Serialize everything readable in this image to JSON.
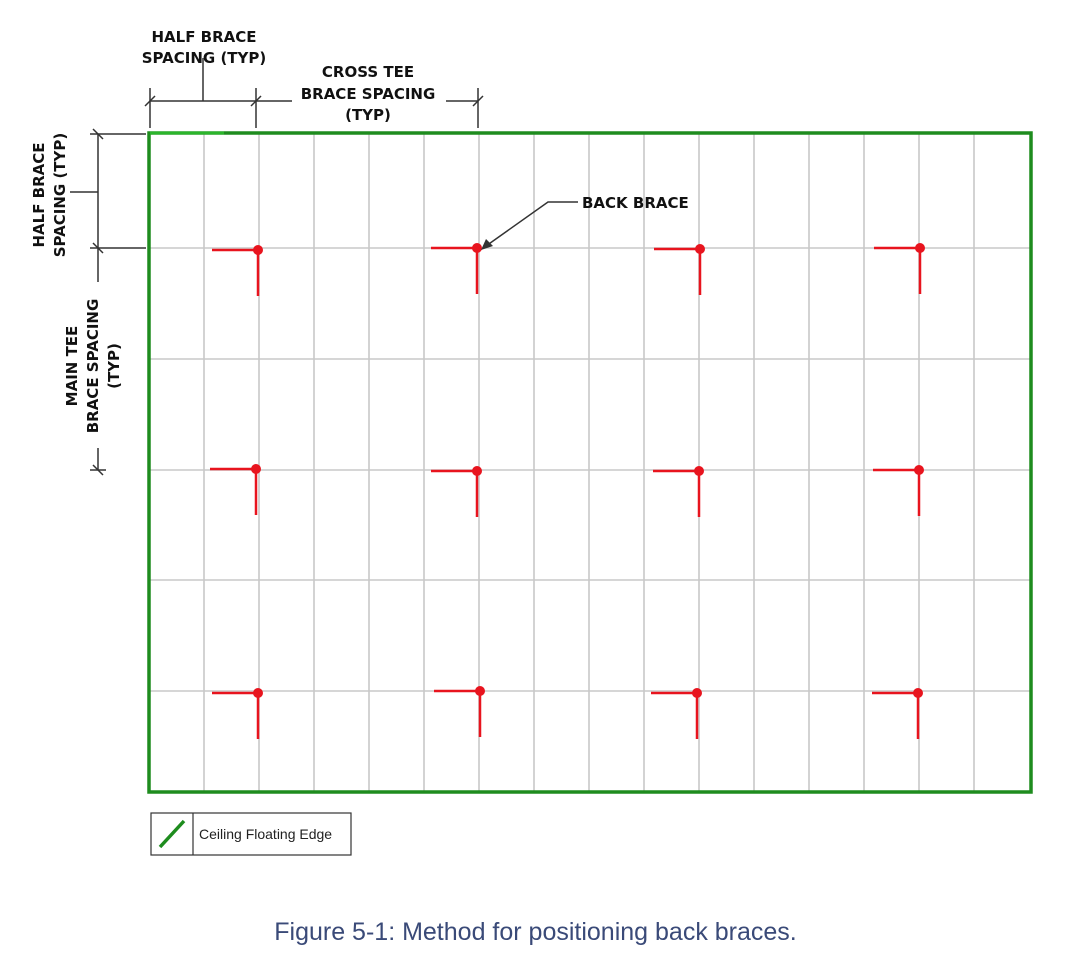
{
  "labels": {
    "half_brace_top": [
      "HALF BRACE",
      "SPACING (TYP)"
    ],
    "cross_tee": [
      "CROSS TEE",
      "BRACE SPACING",
      "(TYP)"
    ],
    "back_brace": "BACK BRACE",
    "half_brace_left": [
      "HALF BRACE",
      "SPACING (TYP)"
    ],
    "main_tee": [
      "MAIN TEE",
      "BRACE SPACING",
      "(TYP)"
    ]
  },
  "legend": {
    "label": "Ceiling Floating Edge"
  },
  "caption": "Figure 5-1: Method for positioning back braces.",
  "colors": {
    "edge": "#1e8c1e",
    "brace": "#e8141e",
    "grid": "#c8c8c8",
    "dim": "#333333"
  },
  "icons": {
    "legend": "green-diagonal-line-icon"
  }
}
